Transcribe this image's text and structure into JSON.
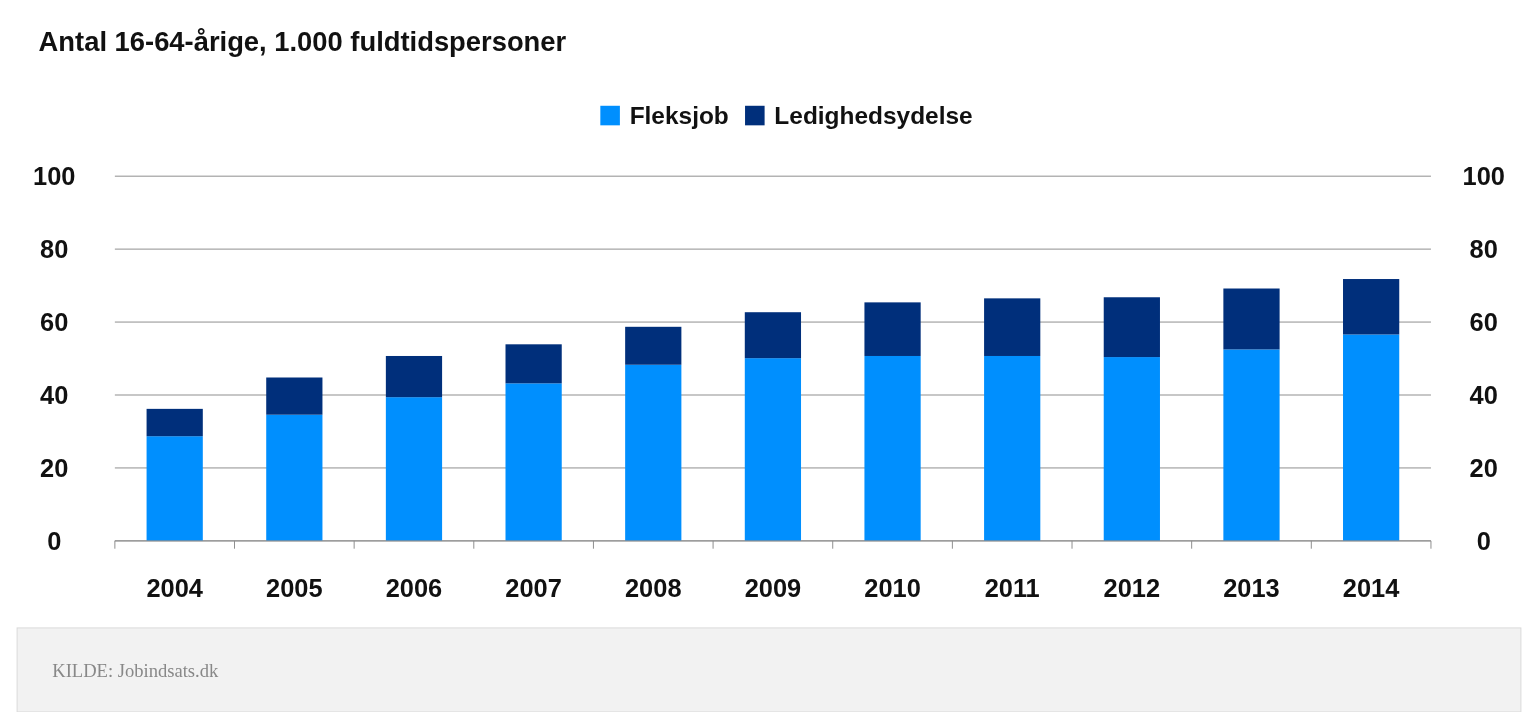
{
  "chart_data": {
    "type": "bar",
    "title": "Antal 16-64-årige, 1.000 fuldtidspersoner",
    "categories": [
      "2004",
      "2005",
      "2006",
      "2007",
      "2008",
      "2009",
      "2010",
      "2011",
      "2012",
      "2013",
      "2014"
    ],
    "stacked": true,
    "series": [
      {
        "name": "Fleksjob",
        "color": "#008ffe",
        "values": [
          28.7,
          34.6,
          39.4,
          43.2,
          48.3,
          50.1,
          50.7,
          50.7,
          50.4,
          52.5,
          56.6
        ]
      },
      {
        "name": "Ledighedsydelse",
        "color": "#002f7b",
        "values": [
          7.5,
          10.2,
          11.3,
          10.7,
          10.4,
          12.6,
          14.7,
          15.8,
          16.4,
          16.7,
          15.2
        ]
      }
    ],
    "ylim": [
      0,
      100
    ],
    "yticks": [
      0,
      20,
      40,
      60,
      80,
      100
    ],
    "y2lim": [
      0,
      100
    ],
    "y2ticks": [
      0,
      20,
      40,
      60,
      80,
      100
    ],
    "grid": "y",
    "legend": "top",
    "annotations": [
      "KILDE: Jobindsats.dk"
    ]
  }
}
